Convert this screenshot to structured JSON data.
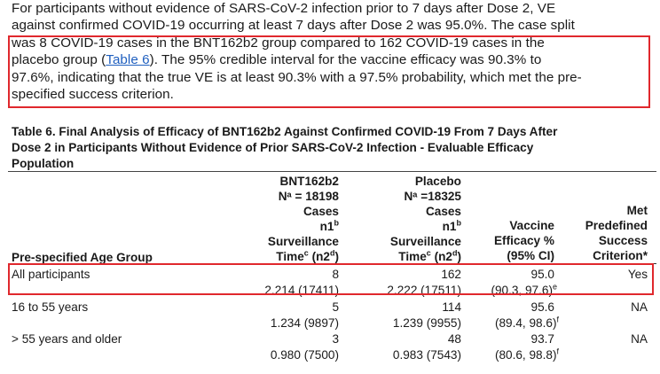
{
  "paragraph": {
    "lines": [
      "For participants without evidence of SARS-CoV-2 infection prior to 7 days after Dose 2, VE",
      "against confirmed COVID-19 occurring at least 7 days after Dose 2 was 95.0%. The case split",
      "was 8 COVID-19 cases in the BNT162b2 group compared to 162 COVID-19 cases in the",
      "placebo group (",
      "). The 95% credible interval for the vaccine efficacy was 90.3% to",
      "97.6%, indicating that the true VE is at least 90.3% with a 97.5% probability, which met the pre-",
      "specified success criterion."
    ],
    "link_text": "Table 6"
  },
  "caption": {
    "lines": [
      "Table 6. Final Analysis of Efficacy of BNT162b2 Against Confirmed COVID-19 From 7 Days After",
      "Dose 2 in Participants Without Evidence of Prior SARS-CoV-2 Infection - Evaluable Efficacy",
      "Population"
    ]
  },
  "table": {
    "header": {
      "age_group": "Pre-specified Age Group",
      "bnt": {
        "name": "BNT162b2",
        "n_line": "Nᵃ = 18198",
        "l1": "Cases",
        "l2": "n1",
        "l2_sup": "b",
        "l3": "Surveillance",
        "l4": "Time",
        "l4_sup1": "c",
        "l4_mid": " (n2",
        "l4_sup2": "d",
        "l4_end": ")"
      },
      "placebo": {
        "name": "Placebo",
        "n_line": "Nᵃ =18325",
        "l1": "Cases",
        "l2": "n1",
        "l2_sup": "b",
        "l3": "Surveillance",
        "l4": "Time",
        "l4_sup1": "c",
        "l4_mid": " (n2",
        "l4_sup2": "d",
        "l4_end": ")"
      },
      "ve": {
        "l1": "Vaccine",
        "l2": "Efficacy %",
        "l3": "(95% CI)"
      },
      "met": {
        "l1": "Met",
        "l2": "Predefined",
        "l3": "Success",
        "l4": "Criterion*"
      }
    },
    "rows": [
      {
        "label": "All participants",
        "bnt_cases": "8",
        "bnt_time": "2.214 (17411)",
        "pla_cases": "162",
        "pla_time": "2.222 (17511)",
        "ve": "95.0",
        "ci": "(90.3, 97.6)",
        "ci_sup": "e",
        "met": "Yes"
      },
      {
        "label": "16 to 55 years",
        "bnt_cases": "5",
        "bnt_time": "1.234 (9897)",
        "pla_cases": "114",
        "pla_time": "1.239 (9955)",
        "ve": "95.6",
        "ci": "(89.4, 98.6)",
        "ci_sup": "f",
        "met": "NA"
      },
      {
        "label": "> 55 years and older",
        "bnt_cases": "3",
        "bnt_time": "0.980 (7500)",
        "pla_cases": "48",
        "pla_time": "0.983 (7543)",
        "ve": "93.7",
        "ci": "(80.6, 98.8)",
        "ci_sup": "f",
        "met": "NA"
      }
    ]
  },
  "colors": {
    "highlight": "#e0282d",
    "link": "#1f5fbf"
  }
}
